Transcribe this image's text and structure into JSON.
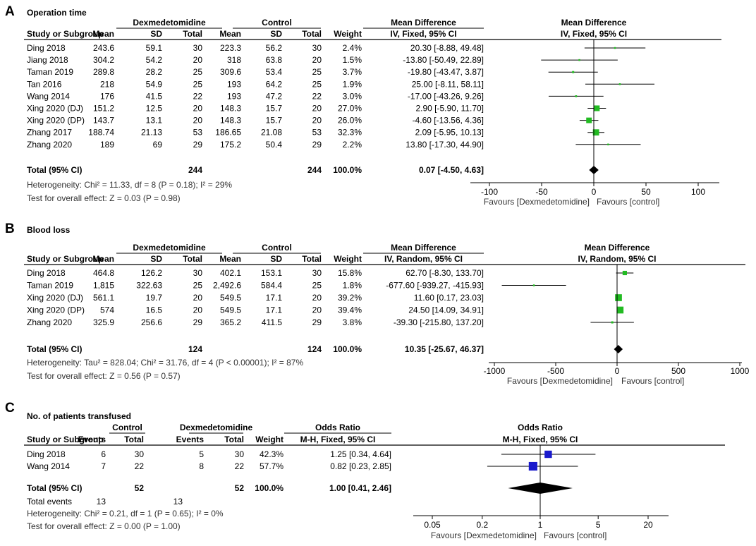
{
  "panels": [
    {
      "letter": "A",
      "title": "Operation time",
      "group1": "Dexmedetomidine",
      "group2": "Control",
      "col_study": "Study or Subgroup",
      "cols": [
        "Mean",
        "SD",
        "Total",
        "Mean",
        "SD",
        "Total",
        "Weight"
      ],
      "effect_header": "Mean Difference",
      "effect_sub": "IV, Fixed, 95% CI",
      "rows": [
        {
          "study": "Ding 2018",
          "v": [
            "243.6",
            "59.1",
            "30",
            "223.3",
            "56.2",
            "30",
            "2.4%"
          ],
          "ci_text": "20.30 [-8.88, 49.48]",
          "est": 20.3,
          "lo": -8.88,
          "hi": 49.48,
          "w": 2.4
        },
        {
          "study": "Jiang 2018",
          "v": [
            "304.2",
            "54.2",
            "20",
            "318",
            "63.8",
            "20",
            "1.5%"
          ],
          "ci_text": "-13.80 [-50.49, 22.89]",
          "est": -13.8,
          "lo": -50.49,
          "hi": 22.89,
          "w": 1.5
        },
        {
          "study": "Taman 2019",
          "v": [
            "289.8",
            "28.2",
            "25",
            "309.6",
            "53.4",
            "25",
            "3.7%"
          ],
          "ci_text": "-19.80 [-43.47, 3.87]",
          "est": -19.8,
          "lo": -43.47,
          "hi": 3.87,
          "w": 3.7
        },
        {
          "study": "Tan 2016",
          "v": [
            "218",
            "54.9",
            "25",
            "193",
            "64.2",
            "25",
            "1.9%"
          ],
          "ci_text": "25.00 [-8.11, 58.11]",
          "est": 25.0,
          "lo": -8.11,
          "hi": 58.11,
          "w": 1.9
        },
        {
          "study": "Wang 2014",
          "v": [
            "176",
            "41.5",
            "22",
            "193",
            "47.2",
            "22",
            "3.0%"
          ],
          "ci_text": "-17.00 [-43.26, 9.26]",
          "est": -17.0,
          "lo": -43.26,
          "hi": 9.26,
          "w": 3.0
        },
        {
          "study": "Xing 2020 (DJ)",
          "v": [
            "151.2",
            "12.5",
            "20",
            "148.3",
            "15.7",
            "20",
            "27.0%"
          ],
          "ci_text": "2.90 [-5.90, 11.70]",
          "est": 2.9,
          "lo": -5.9,
          "hi": 11.7,
          "w": 27.0
        },
        {
          "study": "Xing 2020 (DP)",
          "v": [
            "143.7",
            "13.1",
            "20",
            "148.3",
            "15.7",
            "20",
            "26.0%"
          ],
          "ci_text": "-4.60 [-13.56, 4.36]",
          "est": -4.6,
          "lo": -13.56,
          "hi": 4.36,
          "w": 26.0
        },
        {
          "study": "Zhang 2017",
          "v": [
            "188.74",
            "21.13",
            "53",
            "186.65",
            "21.08",
            "53",
            "32.3%"
          ],
          "ci_text": "2.09 [-5.95, 10.13]",
          "est": 2.09,
          "lo": -5.95,
          "hi": 10.13,
          "w": 32.3
        },
        {
          "study": "Zhang 2020",
          "v": [
            "189",
            "69",
            "29",
            "175.2",
            "50.4",
            "29",
            "2.2%"
          ],
          "ci_text": "13.80 [-17.30, 44.90]",
          "est": 13.8,
          "lo": -17.3,
          "hi": 44.9,
          "w": 2.2
        }
      ],
      "total": {
        "label": "Total (95% CI)",
        "n1": "244",
        "n2": "244",
        "weight": "100.0%",
        "ci_text": "0.07 [-4.50, 4.63]",
        "est": 0.07,
        "lo": -4.5,
        "hi": 4.63
      },
      "notes": [
        "Heterogeneity: Chi² = 11.33, df = 8 (P = 0.18); I² = 29%",
        "Test for overall effect: Z = 0.03 (P = 0.98)"
      ],
      "axis": {
        "scale": "linear",
        "min": -100,
        "max": 100,
        "ref": 0,
        "ticks": [
          -100,
          -50,
          0,
          50,
          100
        ],
        "tick_labels": [
          "-100",
          "-50",
          "0",
          "50",
          "100"
        ]
      },
      "favours": [
        "Favours [Dexmedetomidine]",
        "Favours [control]"
      ],
      "marker": "green"
    },
    {
      "letter": "B",
      "title": "Blood loss",
      "group1": "Dexmedetomidine",
      "group2": "Control",
      "col_study": "Study or Subgroup",
      "cols": [
        "Mean",
        "SD",
        "Total",
        "Mean",
        "SD",
        "Total",
        "Weight"
      ],
      "effect_header": "Mean Difference",
      "effect_sub": "IV, Random, 95% CI",
      "rows": [
        {
          "study": "Ding 2018",
          "v": [
            "464.8",
            "126.2",
            "30",
            "402.1",
            "153.1",
            "30",
            "15.8%"
          ],
          "ci_text": "62.70 [-8.30, 133.70]",
          "est": 62.7,
          "lo": -8.3,
          "hi": 133.7,
          "w": 15.8
        },
        {
          "study": "Taman 2019",
          "v": [
            "1,815",
            "322.63",
            "25",
            "2,492.6",
            "584.4",
            "25",
            "1.8%"
          ],
          "ci_text": "-677.60 [-939.27, -415.93]",
          "est": -677.6,
          "lo": -939.27,
          "hi": -415.93,
          "w": 1.8
        },
        {
          "study": "Xing 2020 (DJ)",
          "v": [
            "561.1",
            "19.7",
            "20",
            "549.5",
            "17.1",
            "20",
            "39.2%"
          ],
          "ci_text": "11.60 [0.17, 23.03]",
          "est": 11.6,
          "lo": 0.17,
          "hi": 23.03,
          "w": 39.2
        },
        {
          "study": "Xing 2020 (DP)",
          "v": [
            "574",
            "16.5",
            "20",
            "549.5",
            "17.1",
            "20",
            "39.4%"
          ],
          "ci_text": "24.50 [14.09, 34.91]",
          "est": 24.5,
          "lo": 14.09,
          "hi": 34.91,
          "w": 39.4
        },
        {
          "study": "Zhang 2020",
          "v": [
            "325.9",
            "256.6",
            "29",
            "365.2",
            "411.5",
            "29",
            "3.8%"
          ],
          "ci_text": "-39.30 [-215.80, 137.20]",
          "est": -39.3,
          "lo": -215.8,
          "hi": 137.2,
          "w": 3.8
        }
      ],
      "total": {
        "label": "Total (95% CI)",
        "n1": "124",
        "n2": "124",
        "weight": "100.0%",
        "ci_text": "10.35 [-25.67, 46.37]",
        "est": 10.35,
        "lo": -25.67,
        "hi": 46.37
      },
      "notes": [
        "Heterogeneity: Tau² = 828.04; Chi² = 31.76, df = 4 (P < 0.00001); I² = 87%",
        "Test for overall effect: Z = 0.56 (P = 0.57)"
      ],
      "axis": {
        "scale": "linear",
        "min": -1000,
        "max": 1000,
        "ref": 0,
        "ticks": [
          -1000,
          -500,
          0,
          500,
          1000
        ],
        "tick_labels": [
          "-1000",
          "-500",
          "0",
          "500",
          "1000"
        ]
      },
      "favours": [
        "Favours [Dexmedetomidine]",
        "Favours [control]"
      ],
      "marker": "green"
    },
    {
      "letter": "C",
      "title": "No. of patients transfused",
      "group1": "Control",
      "group2": "Dexmedetomidine",
      "col_study": "Study or Subgroup",
      "cols": [
        "Events",
        "Total",
        "Events",
        "Total",
        "Weight"
      ],
      "effect_header": "Odds Ratio",
      "effect_sub": "M-H, Fixed, 95% CI",
      "rows": [
        {
          "study": "Ding 2018",
          "v": [
            "6",
            "30",
            "5",
            "30",
            "42.3%"
          ],
          "ci_text": "1.25 [0.34, 4.64]",
          "est": 1.25,
          "lo": 0.34,
          "hi": 4.64,
          "w": 42.3
        },
        {
          "study": "Wang 2014",
          "v": [
            "7",
            "22",
            "8",
            "22",
            "57.7%"
          ],
          "ci_text": "0.82 [0.23, 2.85]",
          "est": 0.82,
          "lo": 0.23,
          "hi": 2.85,
          "w": 57.7
        }
      ],
      "total": {
        "label": "Total (95% CI)",
        "n1": "52",
        "n2": "52",
        "weight": "100.0%",
        "ci_text": "1.00 [0.41, 2.46]",
        "est": 1.0,
        "lo": 0.41,
        "hi": 2.46
      },
      "total_events": {
        "label": "Total events",
        "e1": "13",
        "e2": "13"
      },
      "notes": [
        "Heterogeneity: Chi² = 0.21, df = 1 (P = 0.65); I² = 0%",
        "Test for overall effect: Z = 0.00 (P = 1.00)"
      ],
      "axis": {
        "scale": "log",
        "min": 0.05,
        "max": 20,
        "ref": 1,
        "ticks": [
          0.05,
          0.2,
          1,
          5,
          20
        ],
        "tick_labels": [
          "0.05",
          "0.2",
          "1",
          "5",
          "20"
        ]
      },
      "favours": [
        "Favours [Dexmedetomidine]",
        "Favours [control]"
      ],
      "marker": "blue"
    }
  ],
  "colors": {
    "green": "#22bb22",
    "blue": "#1a1acc",
    "diamond": "#000000",
    "line": "#000000"
  },
  "chart_data": [
    {
      "type": "forest",
      "title": "Operation time",
      "measure": "Mean Difference (IV, Fixed, 95% CI)",
      "studies": [
        "Ding 2018",
        "Jiang 2018",
        "Taman 2019",
        "Tan 2016",
        "Wang 2014",
        "Xing 2020 (DJ)",
        "Xing 2020 (DP)",
        "Zhang 2017",
        "Zhang 2020"
      ],
      "estimates": [
        20.3,
        -13.8,
        -19.8,
        25.0,
        -17.0,
        2.9,
        -4.6,
        2.09,
        13.8
      ],
      "lower": [
        -8.88,
        -50.49,
        -43.47,
        -8.11,
        -43.26,
        -5.9,
        -13.56,
        -5.95,
        -17.3
      ],
      "upper": [
        49.48,
        22.89,
        3.87,
        58.11,
        9.26,
        11.7,
        4.36,
        10.13,
        44.9
      ],
      "weights": [
        2.4,
        1.5,
        3.7,
        1.9,
        3.0,
        27.0,
        26.0,
        32.3,
        2.2
      ],
      "pooled": {
        "est": 0.07,
        "lo": -4.5,
        "hi": 4.63
      },
      "xlim": [
        -100,
        100
      ]
    },
    {
      "type": "forest",
      "title": "Blood loss",
      "measure": "Mean Difference (IV, Random, 95% CI)",
      "studies": [
        "Ding 2018",
        "Taman 2019",
        "Xing 2020 (DJ)",
        "Xing 2020 (DP)",
        "Zhang 2020"
      ],
      "estimates": [
        62.7,
        -677.6,
        11.6,
        24.5,
        -39.3
      ],
      "lower": [
        -8.3,
        -939.27,
        0.17,
        14.09,
        -215.8
      ],
      "upper": [
        133.7,
        -415.93,
        23.03,
        34.91,
        137.2
      ],
      "weights": [
        15.8,
        1.8,
        39.2,
        39.4,
        3.8
      ],
      "pooled": {
        "est": 10.35,
        "lo": -25.67,
        "hi": 46.37
      },
      "xlim": [
        -1000,
        1000
      ]
    },
    {
      "type": "forest",
      "title": "No. of patients transfused",
      "measure": "Odds Ratio (M-H, Fixed, 95% CI)",
      "studies": [
        "Ding 2018",
        "Wang 2014"
      ],
      "estimates": [
        1.25,
        0.82
      ],
      "lower": [
        0.34,
        0.23
      ],
      "upper": [
        4.64,
        2.85
      ],
      "weights": [
        42.3,
        57.7
      ],
      "pooled": {
        "est": 1.0,
        "lo": 0.41,
        "hi": 2.46
      },
      "xlim": [
        0.05,
        20
      ],
      "xscale": "log"
    }
  ]
}
